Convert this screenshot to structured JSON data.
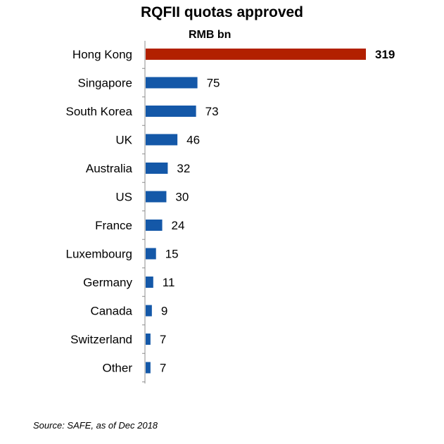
{
  "chart_data": {
    "type": "bar",
    "orientation": "horizontal",
    "title": "RQFII quotas approved",
    "unit_label": "RMB bn",
    "categories": [
      "Hong Kong",
      "Singapore",
      "South Korea",
      "UK",
      "Australia",
      "US",
      "France",
      "Luxembourg",
      "Germany",
      "Canada",
      "Switzerland",
      "Other"
    ],
    "values": [
      319,
      75,
      73,
      46,
      32,
      30,
      24,
      15,
      11,
      9,
      7,
      7
    ],
    "highlight_index": 0,
    "colors": {
      "highlight": "#b22000",
      "default": "#1458a8"
    },
    "grid": false,
    "legend": "none"
  },
  "source": "Source: SAFE, as of Dec 2018"
}
